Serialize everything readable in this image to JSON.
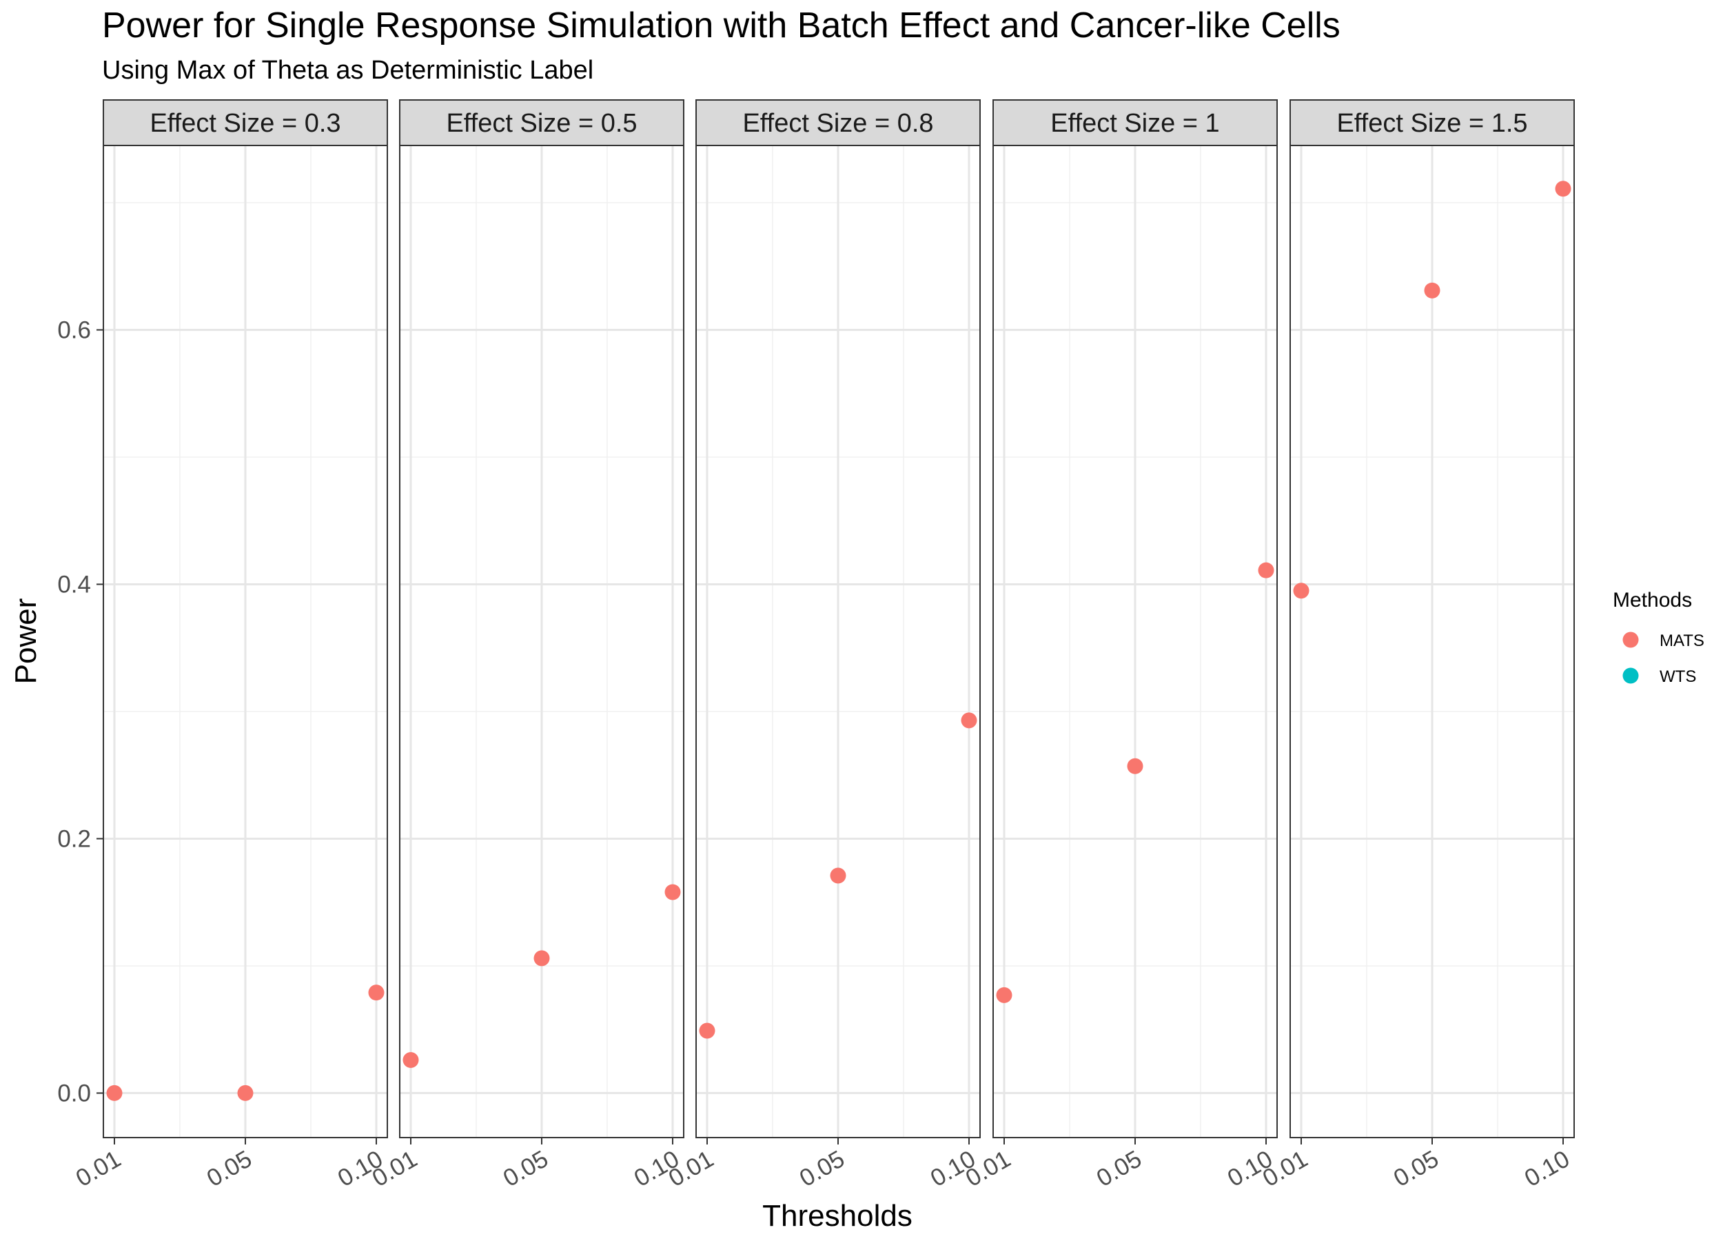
{
  "chart_data": {
    "type": "scatter",
    "title": "Power for Single Response Simulation with Batch Effect and Cancer-like Cells",
    "subtitle": "Using Max of Theta as Deterministic Label",
    "xlabel": "Thresholds",
    "ylabel": "Power",
    "x_ticks": [
      "0.01",
      "0.05",
      "0.10"
    ],
    "y_ticks": [
      "0.0",
      "0.2",
      "0.4",
      "0.6"
    ],
    "ylim": [
      -0.035,
      0.745
    ],
    "grid": true,
    "legend": {
      "title": "Methods",
      "position": "right",
      "entries": [
        {
          "name": "MATS",
          "color": "#F8766D"
        },
        {
          "name": "WTS",
          "color": "#00BFC4"
        }
      ]
    },
    "facets": [
      {
        "label": "Effect Size = 0.3",
        "series": [
          {
            "name": "MATS",
            "color": "#F8766D",
            "points": [
              {
                "x": 0.01,
                "y": 0.0
              },
              {
                "x": 0.05,
                "y": 0.0
              },
              {
                "x": 0.1,
                "y": 0.079
              }
            ]
          }
        ]
      },
      {
        "label": "Effect Size = 0.5",
        "series": [
          {
            "name": "MATS",
            "color": "#F8766D",
            "points": [
              {
                "x": 0.01,
                "y": 0.026
              },
              {
                "x": 0.05,
                "y": 0.106
              },
              {
                "x": 0.1,
                "y": 0.158
              }
            ]
          }
        ]
      },
      {
        "label": "Effect Size = 0.8",
        "series": [
          {
            "name": "MATS",
            "color": "#F8766D",
            "points": [
              {
                "x": 0.01,
                "y": 0.049
              },
              {
                "x": 0.05,
                "y": 0.171
              },
              {
                "x": 0.1,
                "y": 0.293
              }
            ]
          }
        ]
      },
      {
        "label": "Effect Size = 1",
        "series": [
          {
            "name": "MATS",
            "color": "#F8766D",
            "points": [
              {
                "x": 0.01,
                "y": 0.077
              },
              {
                "x": 0.05,
                "y": 0.257
              },
              {
                "x": 0.1,
                "y": 0.411
              }
            ]
          }
        ]
      },
      {
        "label": "Effect Size = 1.5",
        "series": [
          {
            "name": "MATS",
            "color": "#F8766D",
            "points": [
              {
                "x": 0.01,
                "y": 0.395
              },
              {
                "x": 0.05,
                "y": 0.631
              },
              {
                "x": 0.1,
                "y": 0.711
              }
            ]
          }
        ]
      }
    ]
  }
}
